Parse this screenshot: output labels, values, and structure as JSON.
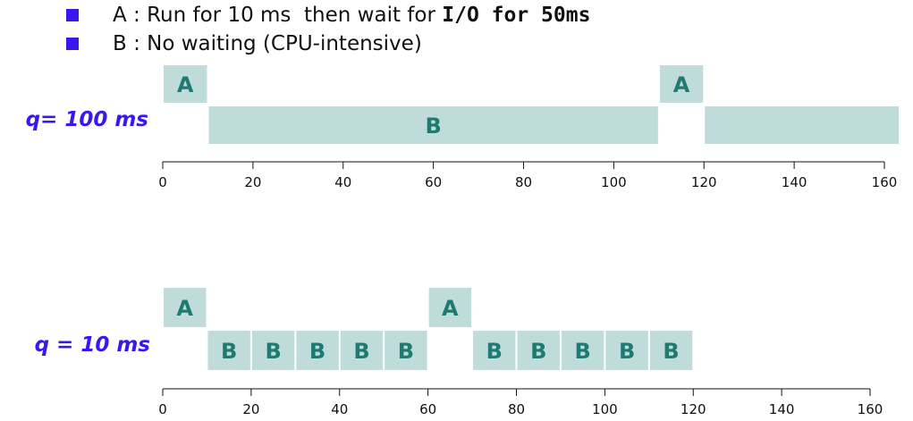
{
  "legend": {
    "a": {
      "prefix": "A : Run for 10 ms  then wait for ",
      "bold": "I/O for 50ms"
    },
    "b": {
      "text": "B : No waiting (CPU-intensive)"
    },
    "bullet_color": "#3a17ee"
  },
  "block_color": "#bfdcdb",
  "chart_data": [
    {
      "type": "gantt",
      "label": "q= 100 ms",
      "xlim": [
        0,
        160
      ],
      "ticks": [
        0,
        20,
        40,
        60,
        80,
        100,
        120,
        140,
        160
      ],
      "blocks": [
        {
          "row": "A",
          "start": 0,
          "end": 10,
          "text": "A"
        },
        {
          "row": "B",
          "start": 10,
          "end": 110,
          "text": "B"
        },
        {
          "row": "A",
          "start": 110,
          "end": 120,
          "text": "A"
        },
        {
          "row": "B",
          "start": 120,
          "end": 164,
          "text": ""
        }
      ]
    },
    {
      "type": "gantt",
      "label": "q = 10 ms",
      "xlim": [
        0,
        160
      ],
      "ticks": [
        0,
        20,
        40,
        60,
        80,
        100,
        120,
        140,
        160
      ],
      "blocks": [
        {
          "row": "A",
          "start": 0,
          "end": 10,
          "text": "A"
        },
        {
          "row": "B",
          "start": 10,
          "end": 20,
          "text": "B"
        },
        {
          "row": "B",
          "start": 20,
          "end": 30,
          "text": "B"
        },
        {
          "row": "B",
          "start": 30,
          "end": 40,
          "text": "B"
        },
        {
          "row": "B",
          "start": 40,
          "end": 50,
          "text": "B"
        },
        {
          "row": "B",
          "start": 50,
          "end": 60,
          "text": "B"
        },
        {
          "row": "A",
          "start": 60,
          "end": 70,
          "text": "A"
        },
        {
          "row": "B",
          "start": 70,
          "end": 80,
          "text": "B"
        },
        {
          "row": "B",
          "start": 80,
          "end": 90,
          "text": "B"
        },
        {
          "row": "B",
          "start": 90,
          "end": 100,
          "text": "B"
        },
        {
          "row": "B",
          "start": 100,
          "end": 110,
          "text": "B"
        },
        {
          "row": "B",
          "start": 110,
          "end": 120,
          "text": "B"
        }
      ]
    }
  ]
}
